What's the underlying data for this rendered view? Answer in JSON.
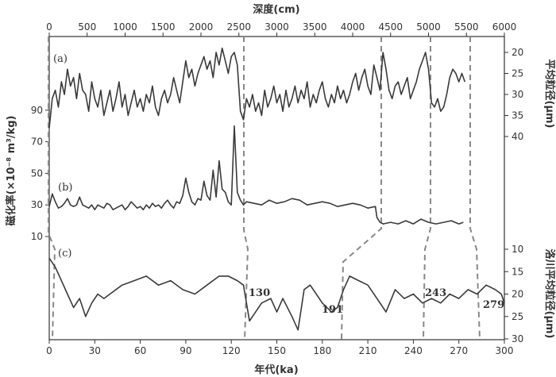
{
  "colors": {
    "curve": "#3a3a3a",
    "guide": "#888888",
    "axis": "#333333"
  },
  "chart_data": [
    {
      "panel": "(a)",
      "type": "line",
      "x_axis": {
        "label": "深度(cm)",
        "position": "top",
        "range": [
          0,
          6000
        ],
        "ticks": [
          0,
          500,
          1000,
          1500,
          2000,
          2500,
          3000,
          3500,
          4000,
          4500,
          5000,
          5500,
          6000
        ]
      },
      "y_axis": {
        "label": "平均粒径(μm)",
        "position": "right",
        "range": [
          45,
          15
        ],
        "ticks": [
          20,
          25,
          30,
          35,
          40
        ]
      },
      "series": [
        {
          "x": [
            0,
            40,
            80,
            120,
            160,
            200,
            240,
            280,
            320,
            360,
            400,
            440,
            480,
            520,
            560,
            600,
            640,
            680,
            720,
            760,
            800,
            840,
            880,
            920,
            960,
            1000,
            1040,
            1080,
            1120,
            1160,
            1200,
            1240,
            1280,
            1320,
            1360,
            1400,
            1440,
            1480,
            1520,
            1560,
            1600,
            1640,
            1680,
            1720,
            1760,
            1800,
            1840,
            1880,
            1920,
            1960,
            2000,
            2040,
            2080,
            2120,
            2160,
            2200,
            2240,
            2280,
            2320,
            2360,
            2400,
            2440,
            2480,
            2520,
            2560,
            2600,
            2640,
            2680,
            2720,
            2760,
            2800,
            2840,
            2880,
            2920,
            2960,
            3000,
            3040,
            3080,
            3120,
            3160,
            3200,
            3240,
            3280,
            3320,
            3360,
            3400,
            3440,
            3480,
            3520,
            3560,
            3600,
            3640,
            3680,
            3720,
            3760,
            3800,
            3840,
            3880,
            3920,
            3960,
            4000,
            4040,
            4080,
            4120,
            4160,
            4200,
            4240,
            4280,
            4320,
            4360,
            4400,
            4440,
            4480,
            4520,
            4560,
            4600,
            4640,
            4680,
            4720,
            4760,
            4800,
            4840,
            4880,
            4920,
            4960,
            5000,
            5040,
            5080,
            5120,
            5160,
            5200,
            5240,
            5280,
            5320,
            5360,
            5400,
            5440,
            5480
          ],
          "y": [
            38,
            31,
            29,
            33,
            27,
            30,
            24,
            28,
            26,
            31,
            25,
            29,
            30,
            34,
            27,
            31,
            33,
            29,
            35,
            32,
            29,
            34,
            31,
            27,
            33,
            30,
            35,
            32,
            29,
            33,
            31,
            34,
            30,
            32,
            28,
            33,
            35,
            31,
            29,
            32,
            30,
            26,
            29,
            32,
            27,
            22,
            26,
            24,
            28,
            25,
            23,
            21,
            24,
            22,
            26,
            20,
            23,
            19,
            22,
            25,
            21,
            20,
            23,
            34,
            36,
            31,
            33,
            30,
            34,
            32,
            35,
            29,
            33,
            31,
            28,
            32,
            30,
            34,
            29,
            33,
            31,
            28,
            32,
            29,
            31,
            27,
            33,
            30,
            32,
            29,
            27,
            31,
            33,
            30,
            32,
            28,
            31,
            29,
            32,
            30,
            27,
            25,
            29,
            26,
            24,
            28,
            30,
            23,
            26,
            29,
            20,
            24,
            29,
            31,
            28,
            27,
            30,
            28,
            26,
            31,
            29,
            27,
            24,
            22,
            20,
            24,
            32,
            33,
            31,
            34,
            33,
            30,
            26,
            24,
            25,
            27,
            25,
            27
          ]
        }
      ]
    },
    {
      "panel": "(b)",
      "type": "line",
      "y_axis": {
        "label": "磁化率(×10⁻⁸ m³/kg)",
        "position": "left",
        "ticks": [
          10,
          30,
          50,
          70,
          90
        ]
      },
      "series": [
        {
          "x": [
            0,
            2,
            4,
            6,
            8,
            10,
            12,
            14,
            16,
            18,
            20,
            22,
            24,
            26,
            28,
            30,
            32,
            34,
            36,
            38,
            40,
            42,
            44,
            46,
            48,
            50,
            52,
            54,
            56,
            58,
            60,
            62,
            64,
            66,
            68,
            70,
            72,
            74,
            76,
            78,
            80,
            82,
            84,
            86,
            88,
            90,
            92,
            94,
            96,
            98,
            100,
            102,
            104,
            106,
            108,
            110,
            112,
            114,
            116,
            118,
            120,
            122,
            124,
            126,
            128,
            130,
            135,
            140,
            145,
            150,
            155,
            160,
            165,
            170,
            175,
            180,
            185,
            190,
            195,
            200,
            205,
            210,
            215,
            216,
            218,
            220,
            225,
            230,
            235,
            240,
            245,
            250,
            255,
            260,
            265,
            270,
            273
          ],
          "y": [
            29,
            37,
            32,
            28,
            29,
            31,
            34,
            30,
            29,
            30,
            35,
            30,
            29,
            28,
            30,
            27,
            30,
            29,
            28,
            31,
            30,
            27,
            28,
            29,
            30,
            27,
            29,
            32,
            30,
            28,
            29,
            27,
            30,
            28,
            31,
            29,
            30,
            28,
            31,
            33,
            30,
            28,
            32,
            31,
            36,
            47,
            38,
            32,
            30,
            34,
            33,
            45,
            36,
            33,
            52,
            35,
            58,
            40,
            38,
            32,
            30,
            80,
            38,
            33,
            30,
            32,
            31,
            30,
            33,
            31,
            32,
            34,
            33,
            30,
            31,
            32,
            31,
            29,
            30,
            31,
            30,
            28,
            29,
            22,
            19,
            18,
            19,
            18,
            20,
            18,
            21,
            19,
            18,
            19,
            20,
            18,
            19
          ]
        }
      ]
    },
    {
      "panel": "(c)",
      "type": "line",
      "x_axis": {
        "label": "年代(ka)",
        "position": "bottom",
        "range": [
          0,
          300
        ],
        "ticks": [
          0,
          30,
          60,
          90,
          120,
          150,
          180,
          210,
          240,
          270,
          300
        ]
      },
      "y_axis": {
        "label": "洛川平均粒径(μm)",
        "position": "right",
        "range": [
          30,
          10
        ],
        "ticks": [
          10,
          15,
          20,
          25,
          30
        ]
      },
      "series": [
        {
          "x": [
            0,
            4,
            8,
            12,
            16,
            20,
            24,
            28,
            32,
            36,
            40,
            48,
            56,
            64,
            72,
            80,
            88,
            96,
            104,
            112,
            118,
            124,
            128,
            132,
            136,
            140,
            146,
            150,
            154,
            160,
            164,
            168,
            172,
            176,
            180,
            186,
            190,
            194,
            198,
            204,
            210,
            216,
            222,
            228,
            234,
            240,
            246,
            252,
            258,
            264,
            270,
            276,
            282,
            288,
            294,
            298,
            300
          ],
          "y": [
            12,
            14,
            17,
            20,
            23,
            21,
            25,
            22,
            20,
            21,
            20,
            18,
            17,
            16,
            18,
            17,
            19,
            20,
            18,
            16,
            16,
            17,
            18,
            26,
            24,
            22,
            21,
            24,
            21,
            25,
            28,
            19,
            18,
            20,
            22,
            24,
            23,
            19,
            16,
            17,
            18,
            21,
            24,
            19,
            21,
            20,
            22,
            21,
            22,
            20,
            21,
            19,
            20,
            18,
            19,
            20,
            22
          ]
        }
      ],
      "annotations": [
        "130",
        "191",
        "243",
        "279"
      ]
    }
  ]
}
